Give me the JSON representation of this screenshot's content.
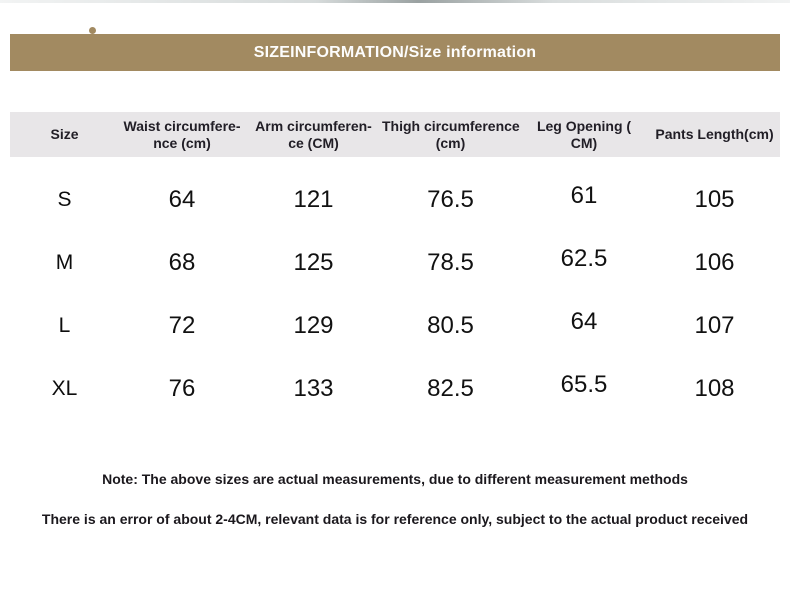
{
  "banner": {
    "title": "SIZEINFORMATION/Size information",
    "bg_color": "#a28a61",
    "text_color": "#fdfdfd"
  },
  "table": {
    "header_bg": "#e8e6e8",
    "columns": [
      {
        "label_lines": [
          "Size"
        ]
      },
      {
        "label_lines": [
          "Waist circumfere-",
          "nce (cm)"
        ]
      },
      {
        "label_lines": [
          "Arm circumferen-",
          "ce (CM)"
        ]
      },
      {
        "label_lines": [
          "Thigh circumference",
          "(cm)"
        ]
      },
      {
        "label_lines": [
          "Leg Opening (",
          "CM)"
        ]
      },
      {
        "label_lines": [
          "Pants Length(cm)"
        ]
      }
    ],
    "rows": [
      {
        "size": "S",
        "values": [
          "64",
          "121",
          "76.5",
          "61",
          "105"
        ]
      },
      {
        "size": "M",
        "values": [
          "68",
          "125",
          "78.5",
          "62.5",
          "106"
        ]
      },
      {
        "size": "L",
        "values": [
          "72",
          "129",
          "80.5",
          "64",
          "107"
        ]
      },
      {
        "size": "XL",
        "values": [
          "76",
          "133",
          "82.5",
          "65.5",
          "108"
        ]
      }
    ]
  },
  "notes": [
    "Note: The above sizes are actual measurements, due to different measurement methods",
    "There is an error of about 2-4CM, relevant data is for reference only, subject to the actual product received"
  ]
}
